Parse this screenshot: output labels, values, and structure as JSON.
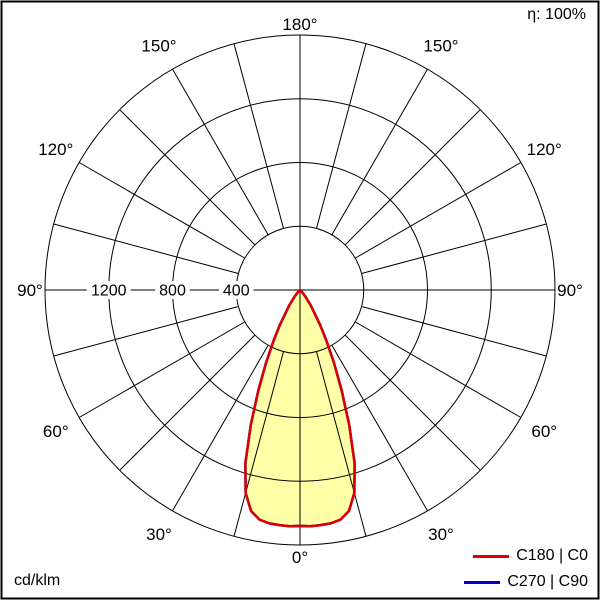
{
  "header": {
    "efficiency": "η: 100%"
  },
  "footer": {
    "unit": "cd/klm"
  },
  "legend": {
    "items": [
      {
        "label": "C180 | C0",
        "color": "#dd0000"
      },
      {
        "label": "C270 | C90",
        "color": "#0000cc"
      }
    ]
  },
  "chart_data": {
    "type": "polar",
    "description": "Luminous intensity distribution curve (polar photometric diagram)",
    "unit": "cd/klm",
    "efficiency_percent": 100,
    "max_value": 1600,
    "rings": [
      400,
      800,
      1200,
      1600
    ],
    "ring_label_values": [
      1200,
      800,
      400
    ],
    "angle_step_deg": 15,
    "angle_label_degrees": [
      0,
      30,
      60,
      90,
      120,
      150,
      180
    ],
    "fill_color": "#ffffa8",
    "grid_color": "#000000",
    "legend_position": "bottom-right",
    "series": [
      {
        "name": "C180 | C0",
        "color": "#dd0000",
        "gamma_deg": [
          0,
          2.5,
          5,
          7.5,
          10,
          12.5,
          15,
          17.5,
          20,
          22.5,
          25,
          27.5,
          30,
          35,
          40,
          45,
          50,
          55,
          60,
          70,
          80,
          90
        ],
        "values": [
          1480,
          1484,
          1481,
          1477,
          1463,
          1420,
          1318,
          1140,
          905,
          685,
          505,
          360,
          252,
          118,
          48,
          16,
          5,
          2,
          1,
          0,
          0,
          0
        ]
      },
      {
        "name": "C270 | C90",
        "color": "#0000cc",
        "gamma_deg": [
          0,
          2.5,
          5,
          7.5,
          10,
          12.5,
          15,
          17.5,
          20,
          22.5,
          25,
          27.5,
          30,
          35,
          40,
          45,
          50,
          55,
          60,
          70,
          80,
          90
        ],
        "values": [
          1480,
          1484,
          1481,
          1477,
          1463,
          1420,
          1318,
          1140,
          905,
          685,
          505,
          360,
          252,
          118,
          48,
          16,
          5,
          2,
          1,
          0,
          0,
          0
        ]
      }
    ]
  }
}
